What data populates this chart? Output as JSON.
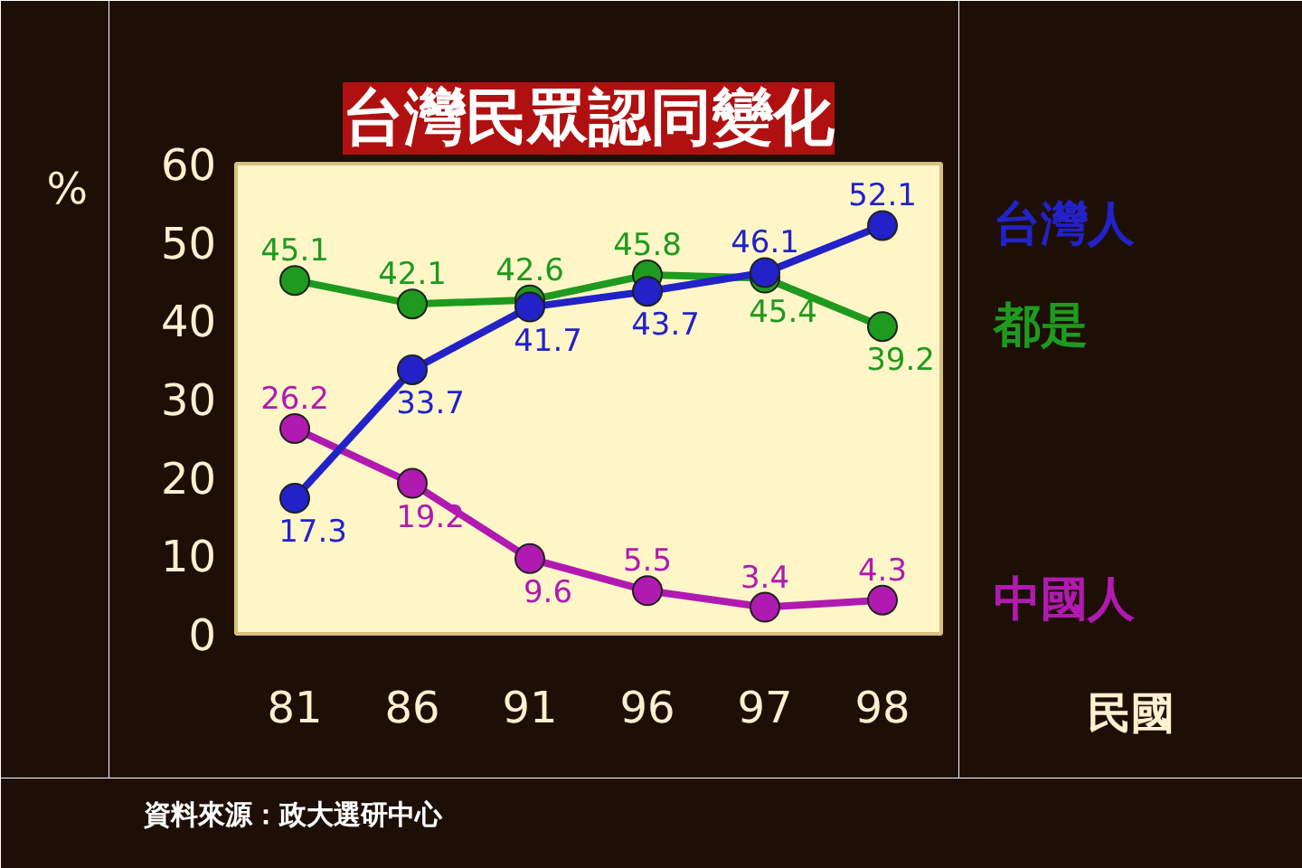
{
  "chart_data": {
    "type": "line",
    "title": "台灣民眾認同變化",
    "xlabel": "民國",
    "ylabel": "%",
    "categories": [
      "81",
      "86",
      "91",
      "96",
      "97",
      "98"
    ],
    "series": [
      {
        "name": "台灣人",
        "color": "#2222c8",
        "values": [
          17.3,
          33.7,
          41.7,
          43.7,
          46.1,
          52.1
        ]
      },
      {
        "name": "都是",
        "color": "#1e9a1e",
        "values": [
          45.1,
          42.1,
          42.6,
          45.8,
          45.4,
          39.2
        ]
      },
      {
        "name": "中國人",
        "color": "#b01ab0",
        "values": [
          26.2,
          19.2,
          9.6,
          5.5,
          3.4,
          4.3
        ]
      }
    ],
    "ylim": [
      0,
      60
    ],
    "yticks": [
      0,
      10,
      20,
      30,
      40,
      50,
      60
    ],
    "grid": false,
    "marker": "circle",
    "line_style": "solid",
    "data_labels": true,
    "annotations": [
      "資料來源：政大選研中心"
    ]
  }
}
